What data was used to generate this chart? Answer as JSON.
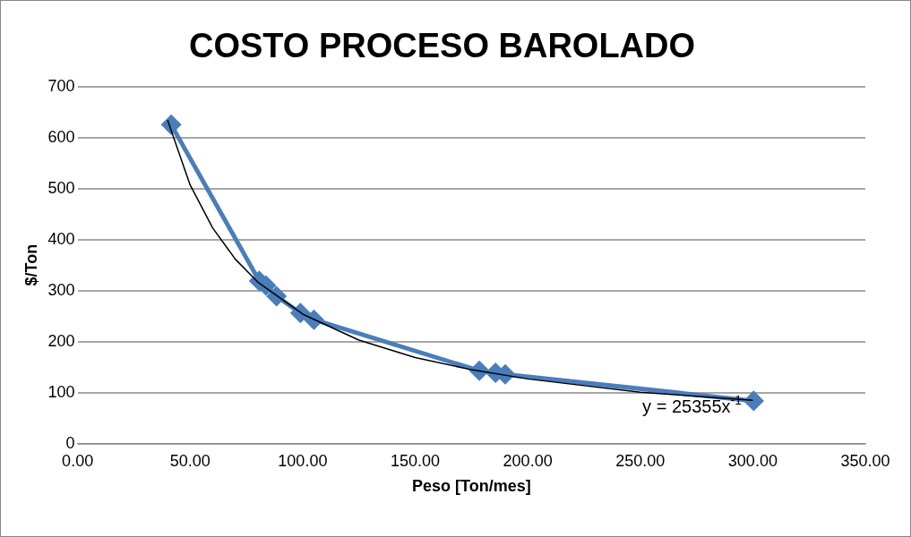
{
  "chart_data": {
    "type": "line",
    "title": "COSTO PROCESO BAROLADO",
    "xlabel": "Peso [Ton/mes]",
    "ylabel": "$/Ton",
    "series": [
      {
        "type": "line",
        "color": "#4a7ebb",
        "x": [
          41.6,
          80.7,
          83.7,
          88.4,
          99.0,
          105.0,
          178.5,
          185.7,
          190.0,
          300.4
        ],
        "values": [
          625,
          319,
          310,
          289,
          256,
          243,
          143,
          139,
          136,
          84
        ],
        "marker": "diamond"
      },
      {
        "type": "line",
        "color": "#000000",
        "x": [
          40,
          50,
          60,
          70,
          80,
          100,
          125,
          150,
          175,
          200,
          250,
          300
        ],
        "values": [
          634,
          507,
          423,
          362,
          317,
          254,
          203,
          169,
          145,
          127,
          101,
          85
        ],
        "marker": "none"
      }
    ],
    "xlim": [
      0,
      350
    ],
    "xticks": [
      {
        "value": 0,
        "label": "0.00"
      },
      {
        "value": 50,
        "label": "50.00"
      },
      {
        "value": 100,
        "label": "100.00"
      },
      {
        "value": 150,
        "label": "150.00"
      },
      {
        "value": 200,
        "label": "200.00"
      },
      {
        "value": 250,
        "label": "250.00"
      },
      {
        "value": 300,
        "label": "300.00"
      },
      {
        "value": 350,
        "label": "350.00"
      }
    ],
    "ylim": [
      0,
      700
    ],
    "yticks": [
      0,
      100,
      200,
      300,
      400,
      500,
      600,
      700
    ],
    "grid": "y",
    "legend": false,
    "annotations": [
      "y = 25355x$^{-1}$"
    ]
  }
}
